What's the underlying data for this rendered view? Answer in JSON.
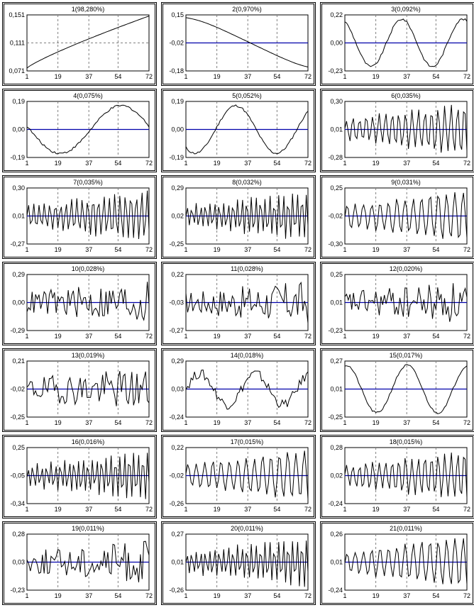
{
  "colors": {
    "series": "#000000",
    "zero_line": "#0000aa",
    "grid": "#808080",
    "frame": "#000000"
  },
  "x_ticks": [
    "1",
    "19",
    "37",
    "54",
    "72"
  ],
  "chart_data": [
    {
      "type": "line",
      "title": "1(98,280%)",
      "yticks": [
        "0,151",
        "0,111",
        "0,071"
      ],
      "ylim": [
        0.071,
        0.151
      ],
      "zero_line": false,
      "kind": "trend",
      "x": [
        1,
        72
      ]
    },
    {
      "type": "line",
      "title": "2(0,970%)",
      "yticks": [
        "0,15",
        "-0,02",
        "-0,18"
      ],
      "ylim": [
        -0.18,
        0.15
      ],
      "zero_line": true,
      "kind": "smooth",
      "x": [
        1,
        72
      ]
    },
    {
      "type": "line",
      "title": "3(0,092%)",
      "yticks": [
        "0,22",
        "0,00",
        "-0,23"
      ],
      "ylim": [
        -0.23,
        0.22
      ],
      "zero_line": true,
      "kind": "wave",
      "x": [
        1,
        72
      ]
    },
    {
      "type": "line",
      "title": "4(0,075%)",
      "yticks": [
        "0,19",
        "0,00",
        "-0,19"
      ],
      "ylim": [
        -0.19,
        0.19
      ],
      "zero_line": true,
      "kind": "wave",
      "x": [
        1,
        72
      ]
    },
    {
      "type": "line",
      "title": "5(0,052%)",
      "yticks": [
        "0,19",
        "0,00",
        "-0,19"
      ],
      "ylim": [
        -0.19,
        0.19
      ],
      "zero_line": true,
      "kind": "wave",
      "x": [
        1,
        72
      ]
    },
    {
      "type": "line",
      "title": "6(0,035%)",
      "yticks": [
        "0,30",
        "0,01",
        "-0,28"
      ],
      "ylim": [
        -0.28,
        0.3
      ],
      "zero_line": true,
      "kind": "osc",
      "x": [
        1,
        72
      ]
    },
    {
      "type": "line",
      "title": "7(0,035%)",
      "yticks": [
        "0,30",
        "0,01",
        "-0,27"
      ],
      "ylim": [
        -0.27,
        0.3
      ],
      "zero_line": true,
      "kind": "osc",
      "x": [
        1,
        72
      ]
    },
    {
      "type": "line",
      "title": "8(0,032%)",
      "yticks": [
        "0,29",
        "0,02",
        "-0,25"
      ],
      "ylim": [
        -0.25,
        0.29
      ],
      "zero_line": true,
      "kind": "osc",
      "x": [
        1,
        72
      ]
    },
    {
      "type": "line",
      "title": "9(0,031%)",
      "yticks": [
        "0,25",
        "-0,02",
        "-0,30"
      ],
      "ylim": [
        -0.3,
        0.25
      ],
      "zero_line": true,
      "kind": "osc",
      "x": [
        1,
        72
      ]
    },
    {
      "type": "line",
      "title": "10(0,028%)",
      "yticks": [
        "0,29",
        "0,00",
        "-0,29"
      ],
      "ylim": [
        -0.29,
        0.29
      ],
      "zero_line": true,
      "kind": "noise",
      "x": [
        1,
        72
      ]
    },
    {
      "type": "line",
      "title": "11(0,028%)",
      "yticks": [
        "0,22",
        "-0,03",
        "-0,27"
      ],
      "ylim": [
        -0.27,
        0.22
      ],
      "zero_line": true,
      "kind": "noise",
      "x": [
        1,
        72
      ]
    },
    {
      "type": "line",
      "title": "12(0,020%)",
      "yticks": [
        "0,25",
        "0,01",
        "-0,23"
      ],
      "ylim": [
        -0.23,
        0.25
      ],
      "zero_line": true,
      "kind": "noise",
      "x": [
        1,
        72
      ]
    },
    {
      "type": "line",
      "title": "13(0,019%)",
      "yticks": [
        "0,21",
        "-0,02",
        "-0,25"
      ],
      "ylim": [
        -0.25,
        0.21
      ],
      "zero_line": true,
      "kind": "noise",
      "x": [
        1,
        72
      ]
    },
    {
      "type": "line",
      "title": "14(0,018%)",
      "yticks": [
        "0,29",
        "0,03",
        "-0,24"
      ],
      "ylim": [
        -0.24,
        0.29
      ],
      "zero_line": true,
      "kind": "mixed",
      "x": [
        1,
        72
      ]
    },
    {
      "type": "line",
      "title": "15(0,017%)",
      "yticks": [
        "0,27",
        "0,01",
        "-0,25"
      ],
      "ylim": [
        -0.25,
        0.27
      ],
      "zero_line": true,
      "kind": "wave",
      "x": [
        1,
        72
      ]
    },
    {
      "type": "line",
      "title": "16(0,016%)",
      "yticks": [
        "0,25",
        "-0,05",
        "-0,34"
      ],
      "ylim": [
        -0.34,
        0.25
      ],
      "zero_line": true,
      "kind": "osc",
      "x": [
        1,
        72
      ]
    },
    {
      "type": "line",
      "title": "17(0,015%)",
      "yticks": [
        "0,22",
        "-0,02",
        "-0,26"
      ],
      "ylim": [
        -0.26,
        0.22
      ],
      "zero_line": true,
      "kind": "osc",
      "x": [
        1,
        72
      ]
    },
    {
      "type": "line",
      "title": "18(0,015%)",
      "yticks": [
        "0,28",
        "0,02",
        "-0,24"
      ],
      "ylim": [
        -0.24,
        0.28
      ],
      "zero_line": true,
      "kind": "osc",
      "x": [
        1,
        72
      ]
    },
    {
      "type": "line",
      "title": "19(0,011%)",
      "yticks": [
        "0,28",
        "0,03",
        "-0,23"
      ],
      "ylim": [
        -0.23,
        0.28
      ],
      "zero_line": true,
      "kind": "noise",
      "x": [
        1,
        72
      ]
    },
    {
      "type": "line",
      "title": "20(0,011%)",
      "yticks": [
        "0,27",
        "0,01",
        "-0,26"
      ],
      "ylim": [
        -0.26,
        0.27
      ],
      "zero_line": true,
      "kind": "osc",
      "x": [
        1,
        72
      ]
    },
    {
      "type": "line",
      "title": "21(0,011%)",
      "yticks": [
        "0,26",
        "0,01",
        "-0,24"
      ],
      "ylim": [
        -0.24,
        0.26
      ],
      "zero_line": true,
      "kind": "osc",
      "x": [
        1,
        72
      ]
    }
  ]
}
